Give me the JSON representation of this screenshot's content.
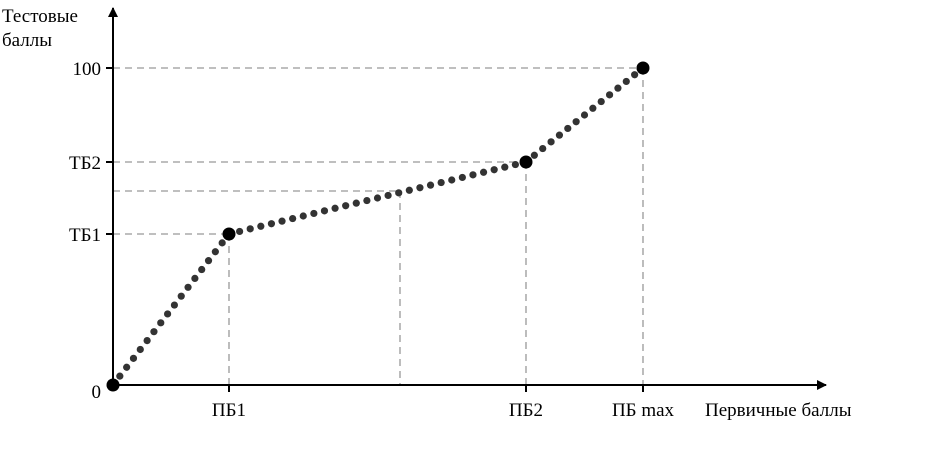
{
  "y_axis": {
    "label_line1": "Тестовые",
    "label_line2": "баллы",
    "ticks": [
      "0",
      "ТБ1",
      "ТБ2",
      "100"
    ]
  },
  "x_axis": {
    "label": "Первичные баллы",
    "ticks": [
      "ПБ1",
      "ПБ2",
      "ПБ max"
    ]
  },
  "colors": {
    "line": "#333333",
    "guides": "#999999",
    "axis": "#000000"
  },
  "chart_data": {
    "type": "line",
    "style": "dotted polyline with black key points; dashed guide lines to axes",
    "points": [
      {
        "x": "0",
        "y": "0"
      },
      {
        "x": "ПБ1",
        "y": "ТБ1"
      },
      {
        "x": "ПБ2",
        "y": "ТБ2"
      },
      {
        "x": "ПБ max",
        "y": "100"
      }
    ],
    "extra_guide": "intermediate point on the ПБ1–ПБ2 segment projected to both axes (unlabeled)"
  }
}
